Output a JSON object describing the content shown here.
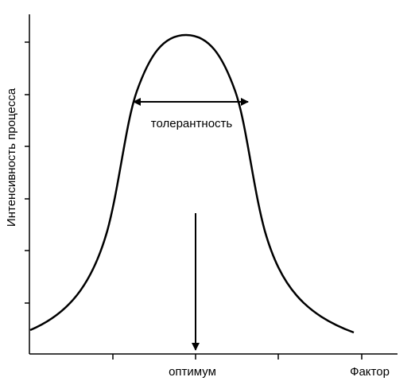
{
  "diagram": {
    "y_axis_label": "Интенсивность процесса",
    "x_axis_label": "Фактор",
    "tolerance_label": "толерантность",
    "optimum_label": "оптимум",
    "curve_shape": "bell",
    "y_ticks": 6,
    "x_ticks": 4,
    "colors": {
      "line": "#000000",
      "background": "#ffffff"
    }
  }
}
